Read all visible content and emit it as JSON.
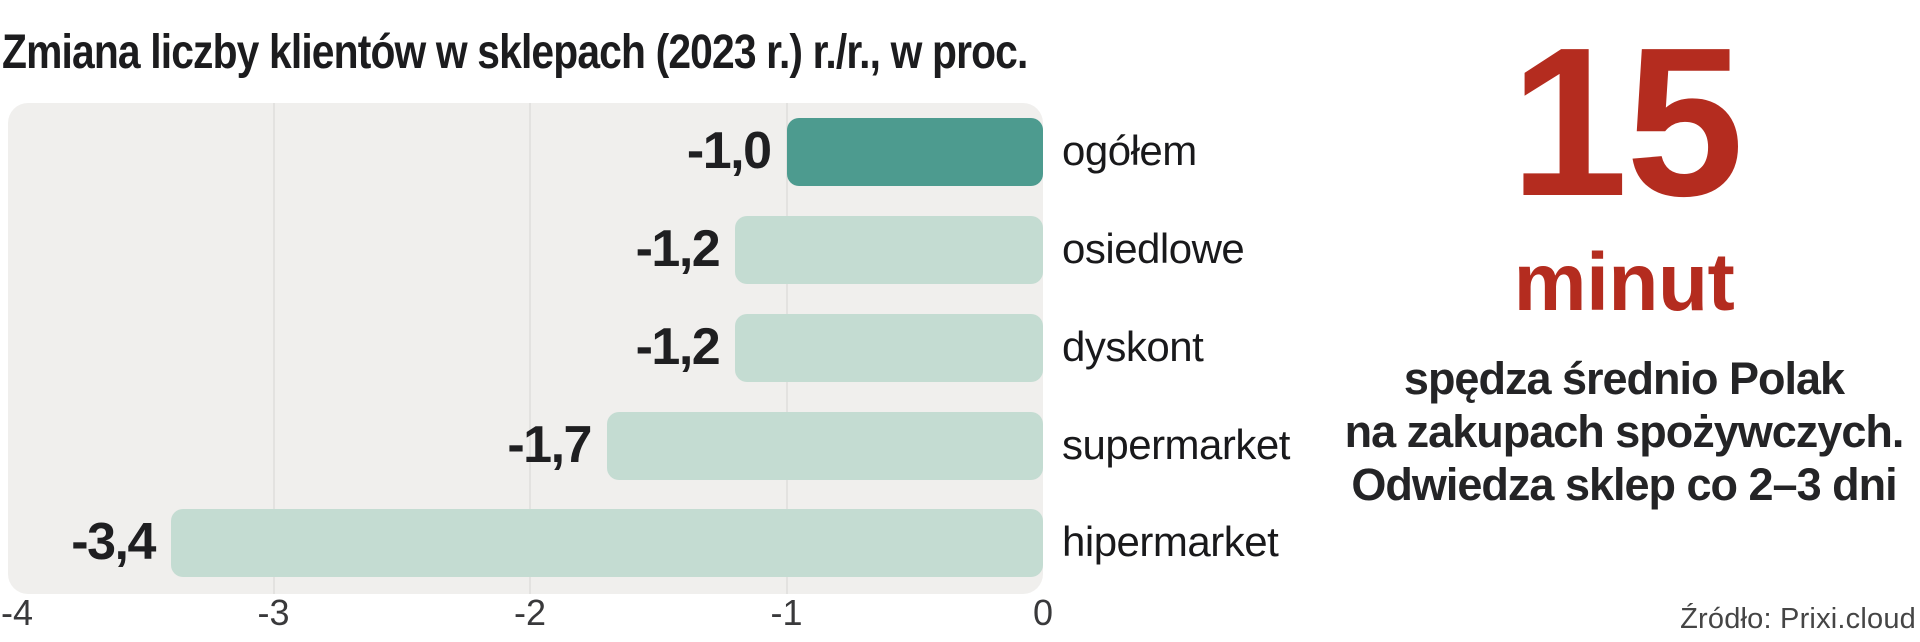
{
  "title": "Zmiana liczby klientów w sklepach (2023 r.) r./r., w proc.",
  "chart_data": {
    "type": "bar",
    "orientation": "horizontal",
    "title": "Zmiana liczby klientów w sklepach (2023 r.) r./r., w proc.",
    "categories": [
      "ogółem",
      "osiedlowe",
      "dyskont",
      "supermarket",
      "hipermarket"
    ],
    "values": [
      -1.0,
      -1.2,
      -1.2,
      -1.7,
      -3.4
    ],
    "value_labels": [
      "-1,0",
      "-1,2",
      "-1,2",
      "-1,7",
      "-3,4"
    ],
    "x_tick_labels": [
      "-4",
      "-3",
      "-2",
      "-1",
      "0"
    ],
    "x_ticks": [
      -4,
      -3,
      -2,
      -1,
      0
    ],
    "xlim": [
      -4,
      0
    ],
    "grid": "vertical gridlines at -3, -2, -1",
    "legend": "none",
    "highlight_category": "ogółem",
    "colors": {
      "highlight_bar": "#4d9b8f",
      "bar": "#c4dcd2",
      "plot_background": "#f0efed",
      "gridline": "#e3e2e0"
    }
  },
  "stat_panel": {
    "number": "15",
    "unit": "minut",
    "description_lines": [
      "spędza średnio Polak",
      "na zakupach spożywczych.",
      "Odwiedza sklep co 2–3 dni"
    ],
    "accent_color": "#b42c1f"
  },
  "source": "Źródło: Prixi.cloud"
}
